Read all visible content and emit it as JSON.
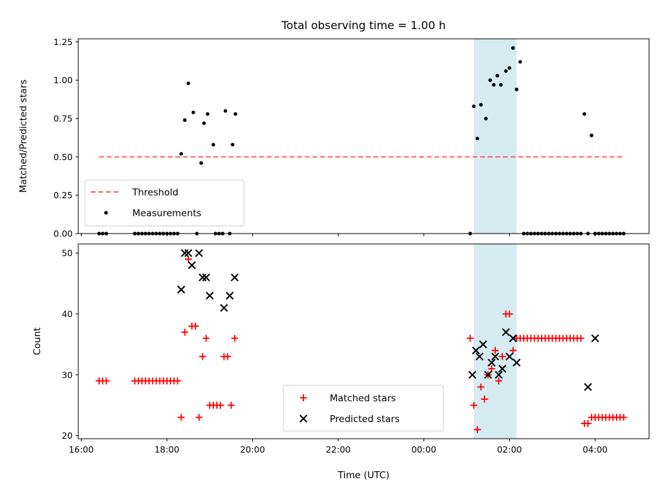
{
  "chart_data": [
    {
      "type": "scatter",
      "title": "Total observing time = 1.00 h",
      "ylabel": "Matched/Predicted stars",
      "xlim": [
        "16:00",
        "05:00"
      ],
      "ylim": [
        0,
        1.27
      ],
      "yticks": [
        "0.00",
        "0.25",
        "0.50",
        "0.75",
        "1.00",
        "1.25"
      ],
      "shaded_region": {
        "start": "01:10",
        "end": "02:10",
        "color": "#add8e6"
      },
      "threshold": {
        "name": "Threshold",
        "value": 0.5,
        "x_range": [
          "16:25",
          "04:40"
        ],
        "color": "#ff6666",
        "style": "dashed"
      },
      "legend_position": "lower-left",
      "series": [
        {
          "name": "Measurements",
          "marker": "dot",
          "color": "#000000",
          "points": [
            [
              "16:25",
              0
            ],
            [
              "16:30",
              0
            ],
            [
              "16:35",
              0
            ],
            [
              "17:15",
              0
            ],
            [
              "17:20",
              0
            ],
            [
              "17:25",
              0
            ],
            [
              "17:30",
              0
            ],
            [
              "17:35",
              0
            ],
            [
              "17:40",
              0
            ],
            [
              "17:45",
              0
            ],
            [
              "17:50",
              0
            ],
            [
              "17:55",
              0
            ],
            [
              "18:00",
              0
            ],
            [
              "18:05",
              0
            ],
            [
              "18:10",
              0
            ],
            [
              "18:15",
              0
            ],
            [
              "18:20",
              0.52
            ],
            [
              "18:25",
              0.74
            ],
            [
              "18:30",
              0.98
            ],
            [
              "18:37",
              0.79
            ],
            [
              "18:42",
              0
            ],
            [
              "18:48",
              0.46
            ],
            [
              "18:52",
              0.72
            ],
            [
              "18:57",
              0.78
            ],
            [
              "19:05",
              0.58
            ],
            [
              "19:08",
              0
            ],
            [
              "19:13",
              0
            ],
            [
              "19:18",
              0
            ],
            [
              "19:22",
              0.8
            ],
            [
              "19:28",
              0
            ],
            [
              "19:32",
              0.58
            ],
            [
              "19:36",
              0.78
            ],
            [
              "01:05",
              0
            ],
            [
              "01:10",
              0.83
            ],
            [
              "01:15",
              0.62
            ],
            [
              "01:20",
              0.84
            ],
            [
              "01:27",
              0.75
            ],
            [
              "01:33",
              1.0
            ],
            [
              "01:38",
              0.97
            ],
            [
              "01:43",
              1.03
            ],
            [
              "01:48",
              0.97
            ],
            [
              "01:55",
              1.06
            ],
            [
              "02:00",
              1.08
            ],
            [
              "02:05",
              1.21
            ],
            [
              "02:10",
              0.94
            ],
            [
              "02:15",
              1.12
            ],
            [
              "02:20",
              0
            ],
            [
              "02:25",
              0
            ],
            [
              "02:30",
              0
            ],
            [
              "02:35",
              0
            ],
            [
              "02:40",
              0
            ],
            [
              "02:45",
              0
            ],
            [
              "02:50",
              0
            ],
            [
              "02:55",
              0
            ],
            [
              "03:00",
              0
            ],
            [
              "03:05",
              0
            ],
            [
              "03:10",
              0
            ],
            [
              "03:15",
              0
            ],
            [
              "03:20",
              0
            ],
            [
              "03:25",
              0
            ],
            [
              "03:30",
              0
            ],
            [
              "03:35",
              0
            ],
            [
              "03:40",
              0
            ],
            [
              "03:45",
              0.78
            ],
            [
              "03:50",
              0
            ],
            [
              "03:55",
              0.64
            ],
            [
              "04:00",
              0
            ],
            [
              "04:05",
              0
            ],
            [
              "04:10",
              0
            ],
            [
              "04:15",
              0
            ],
            [
              "04:20",
              0
            ],
            [
              "04:25",
              0
            ],
            [
              "04:30",
              0
            ],
            [
              "04:35",
              0
            ],
            [
              "04:40",
              0
            ]
          ]
        }
      ]
    },
    {
      "type": "scatter",
      "xlabel": "Time (UTC)",
      "ylabel": "Count",
      "xlim": [
        "16:00",
        "05:00"
      ],
      "ylim": [
        19.5,
        51.5
      ],
      "xticks": [
        "16:00",
        "18:00",
        "20:00",
        "22:00",
        "00:00",
        "02:00",
        "04:00"
      ],
      "yticks": [
        "20",
        "30",
        "40",
        "50"
      ],
      "shaded_region": {
        "start": "01:10",
        "end": "02:10",
        "color": "#add8e6"
      },
      "legend_position": "lower-center",
      "series": [
        {
          "name": "Matched stars",
          "marker": "plus",
          "color": "#ff0000",
          "points": [
            [
              "16:25",
              29
            ],
            [
              "16:30",
              29
            ],
            [
              "16:35",
              29
            ],
            [
              "17:15",
              29
            ],
            [
              "17:20",
              29
            ],
            [
              "17:25",
              29
            ],
            [
              "17:30",
              29
            ],
            [
              "17:35",
              29
            ],
            [
              "17:40",
              29
            ],
            [
              "17:45",
              29
            ],
            [
              "17:50",
              29
            ],
            [
              "17:55",
              29
            ],
            [
              "18:00",
              29
            ],
            [
              "18:05",
              29
            ],
            [
              "18:10",
              29
            ],
            [
              "18:15",
              29
            ],
            [
              "18:20",
              23
            ],
            [
              "18:25",
              37
            ],
            [
              "18:30",
              49
            ],
            [
              "18:35",
              38
            ],
            [
              "18:40",
              38
            ],
            [
              "18:45",
              23
            ],
            [
              "18:50",
              33
            ],
            [
              "18:55",
              36
            ],
            [
              "19:00",
              25
            ],
            [
              "19:05",
              25
            ],
            [
              "19:10",
              25
            ],
            [
              "19:15",
              25
            ],
            [
              "19:20",
              33
            ],
            [
              "19:25",
              33
            ],
            [
              "19:30",
              25
            ],
            [
              "19:35",
              36
            ],
            [
              "01:05",
              36
            ],
            [
              "01:10",
              25
            ],
            [
              "01:15",
              21
            ],
            [
              "01:20",
              28
            ],
            [
              "01:25",
              26
            ],
            [
              "01:30",
              30
            ],
            [
              "01:35",
              31
            ],
            [
              "01:40",
              34
            ],
            [
              "01:45",
              29
            ],
            [
              "01:50",
              33
            ],
            [
              "01:55",
              40
            ],
            [
              "02:00",
              40
            ],
            [
              "02:05",
              34
            ],
            [
              "02:10",
              36
            ],
            [
              "02:15",
              36
            ],
            [
              "02:20",
              36
            ],
            [
              "02:25",
              36
            ],
            [
              "02:30",
              36
            ],
            [
              "02:35",
              36
            ],
            [
              "02:40",
              36
            ],
            [
              "02:45",
              36
            ],
            [
              "02:50",
              36
            ],
            [
              "02:55",
              36
            ],
            [
              "03:00",
              36
            ],
            [
              "03:05",
              36
            ],
            [
              "03:10",
              36
            ],
            [
              "03:15",
              36
            ],
            [
              "03:20",
              36
            ],
            [
              "03:25",
              36
            ],
            [
              "03:30",
              36
            ],
            [
              "03:35",
              36
            ],
            [
              "03:40",
              36
            ],
            [
              "03:45",
              22
            ],
            [
              "03:50",
              22
            ],
            [
              "03:55",
              23
            ],
            [
              "04:00",
              23
            ],
            [
              "04:05",
              23
            ],
            [
              "04:10",
              23
            ],
            [
              "04:15",
              23
            ],
            [
              "04:20",
              23
            ],
            [
              "04:25",
              23
            ],
            [
              "04:30",
              23
            ],
            [
              "04:35",
              23
            ],
            [
              "04:40",
              23
            ]
          ]
        },
        {
          "name": "Predicted stars",
          "marker": "x",
          "color": "#000000",
          "points": [
            [
              "18:20",
              44
            ],
            [
              "18:25",
              50
            ],
            [
              "18:30",
              50
            ],
            [
              "18:35",
              48
            ],
            [
              "18:45",
              50
            ],
            [
              "18:50",
              46
            ],
            [
              "18:55",
              46
            ],
            [
              "19:00",
              43
            ],
            [
              "19:20",
              41
            ],
            [
              "19:28",
              43
            ],
            [
              "19:35",
              46
            ],
            [
              "01:08",
              30
            ],
            [
              "01:13",
              34
            ],
            [
              "01:18",
              33
            ],
            [
              "01:23",
              35
            ],
            [
              "01:30",
              30
            ],
            [
              "01:35",
              32
            ],
            [
              "01:40",
              33
            ],
            [
              "01:45",
              30
            ],
            [
              "01:50",
              31
            ],
            [
              "01:55",
              37
            ],
            [
              "02:00",
              33
            ],
            [
              "02:05",
              36
            ],
            [
              "02:10",
              32
            ],
            [
              "03:50",
              28
            ],
            [
              "04:00",
              36
            ]
          ]
        }
      ]
    }
  ]
}
